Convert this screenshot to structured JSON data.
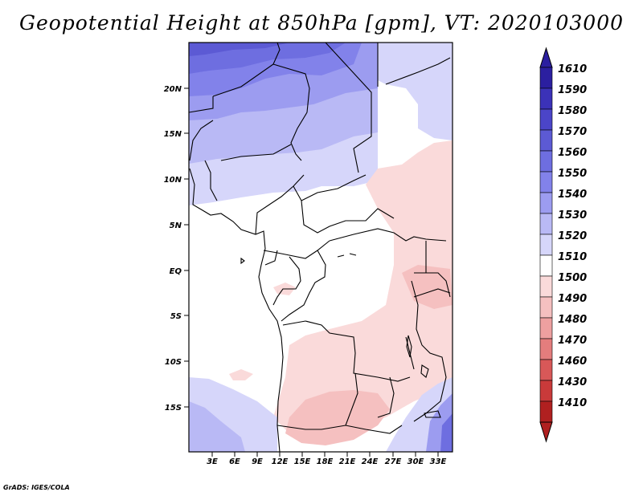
{
  "title": "Geopotential Height at 850hPa [gpm], VT: 2020103000",
  "footer": "GrADS: IGES/COLA",
  "map": {
    "lat_labels": [
      "20N",
      "15N",
      "10N",
      "5N",
      "EQ",
      "5S",
      "10S",
      "15S"
    ],
    "lon_labels": [
      "3E",
      "6E",
      "9E",
      "12E",
      "15E",
      "18E",
      "21E",
      "24E",
      "27E",
      "30E",
      "33E"
    ]
  },
  "colorbar": {
    "levels": [
      "1610",
      "1590",
      "1580",
      "1570",
      "1560",
      "1550",
      "1540",
      "1530",
      "1520",
      "1510",
      "1500",
      "1490",
      "1480",
      "1470",
      "1460",
      "1430",
      "1410"
    ],
    "colors": [
      "#2b1fa0",
      "#3b32b8",
      "#4b45c8",
      "#5c5ad4",
      "#6e6ee0",
      "#8282ea",
      "#9c9cf0",
      "#b9b9f5",
      "#d6d6fa",
      "#ffffff",
      "#fadada",
      "#f5c0c0",
      "#eea0a0",
      "#e47d7d",
      "#d85858",
      "#c93a3a",
      "#b02020"
    ]
  }
}
